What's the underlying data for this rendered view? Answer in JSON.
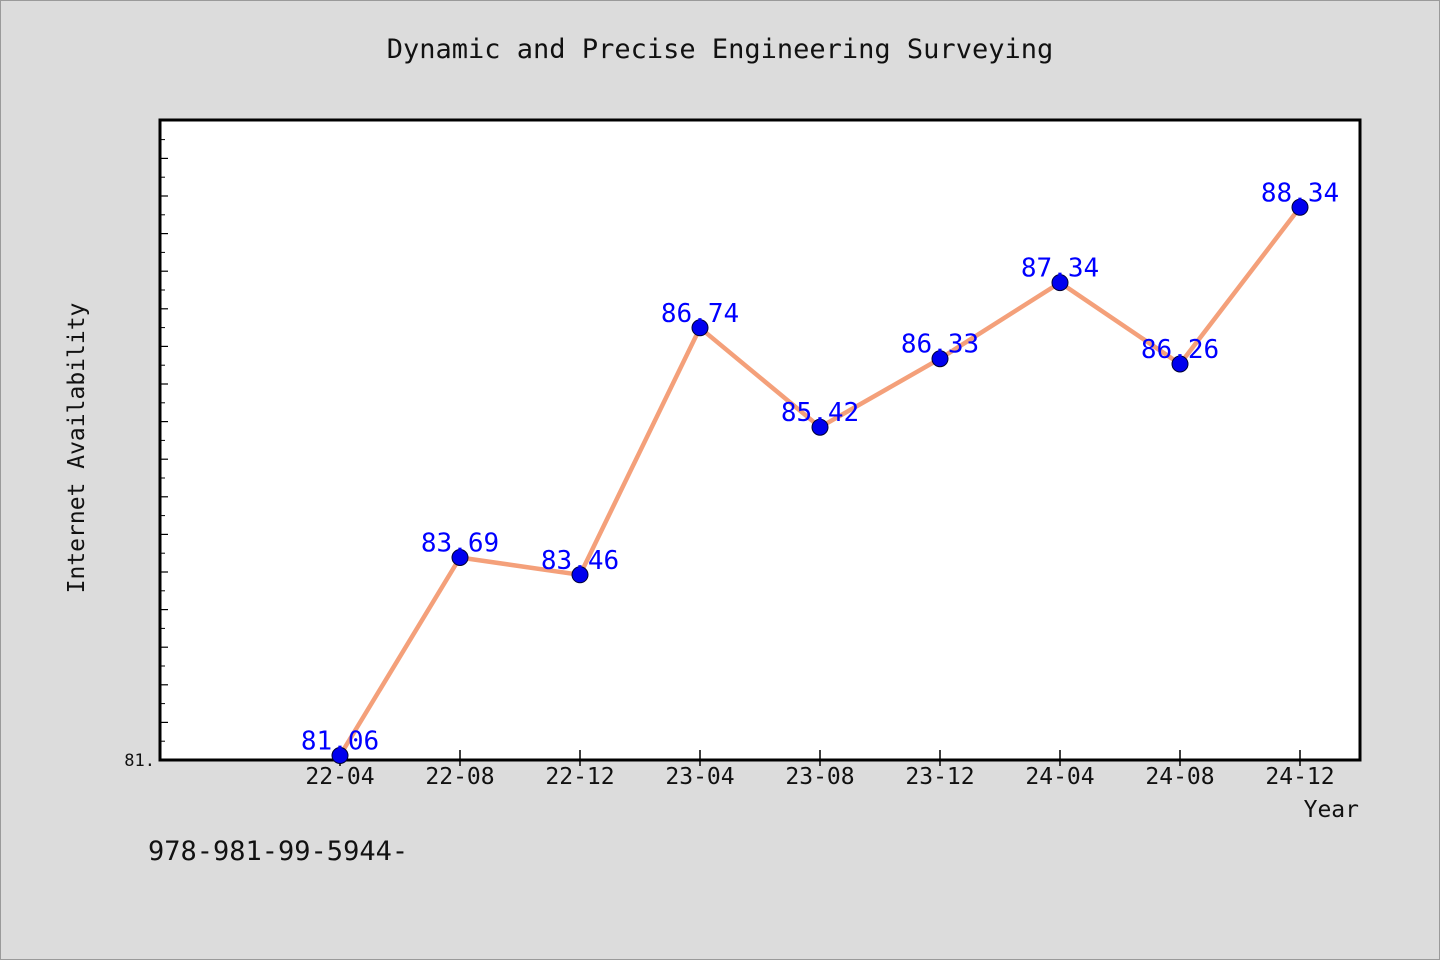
{
  "page": {
    "title": "Dynamic and Precise Engineering Surveying",
    "footer": "978-981-99-5944-"
  },
  "chart_data": {
    "type": "line",
    "title": "Dynamic and Precise Engineering Surveying",
    "xlabel": "Year",
    "ylabel": "Internet Availability",
    "categories": [
      "22-04",
      "22-08",
      "22-12",
      "23-04",
      "23-08",
      "23-12",
      "24-04",
      "24-08",
      "24-12"
    ],
    "series": [
      {
        "values": [
          81.06,
          83.69,
          83.46,
          86.74,
          85.42,
          86.33,
          87.34,
          86.26,
          88.34
        ],
        "data_labels": [
          "81.06",
          "83.69",
          "83.46",
          "86.74",
          "85.42",
          "86.33",
          "87.34",
          "86.26",
          "88.34"
        ]
      }
    ],
    "ylim": [
      81.0,
      89.5
    ],
    "y_tick_label": "81.",
    "grid": false,
    "legend": "none",
    "colors": {
      "line": "#f4a07a",
      "marker": "#0000ee",
      "data_label": "#0000ff",
      "plot_background": "#ffffff",
      "figure_background": "#dcdcdc",
      "axis": "#000000"
    }
  }
}
